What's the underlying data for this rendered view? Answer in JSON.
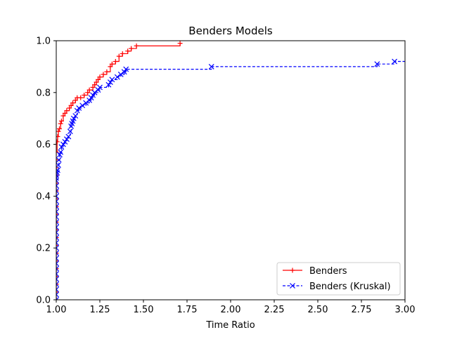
{
  "chart_data": {
    "type": "line",
    "title": "Benders Models",
    "xlabel": "Time Ratio",
    "ylabel": "",
    "xlim": [
      1.0,
      3.0
    ],
    "ylim": [
      0.0,
      1.0
    ],
    "xticks": [
      "1.00",
      "1.25",
      "1.50",
      "1.75",
      "2.00",
      "2.25",
      "2.50",
      "2.75",
      "3.00"
    ],
    "yticks": [
      "0.0",
      "0.2",
      "0.4",
      "0.6",
      "0.8",
      "1.0"
    ],
    "grid": false,
    "legend_position": "lower-right",
    "series": [
      {
        "name": "Benders",
        "color": "#ff0000",
        "marker": "plus",
        "linestyle": "solid",
        "x": [
          1.0,
          1.0,
          1.0,
          1.0,
          1.0,
          1.0,
          1.0,
          1.0,
          1.0,
          1.0,
          1.0,
          1.0,
          1.0,
          1.0,
          1.0,
          1.0,
          1.0,
          1.0,
          1.0,
          1.0,
          1.005,
          1.008,
          1.012,
          1.018,
          1.025,
          1.03,
          1.04,
          1.05,
          1.06,
          1.075,
          1.085,
          1.095,
          1.11,
          1.12,
          1.14,
          1.16,
          1.18,
          1.19,
          1.21,
          1.22,
          1.23,
          1.24,
          1.25,
          1.27,
          1.29,
          1.31,
          1.32,
          1.34,
          1.36,
          1.38,
          1.41,
          1.43,
          1.46,
          1.71
        ],
        "y": [
          0.0,
          0.03,
          0.06,
          0.09,
          0.12,
          0.15,
          0.18,
          0.21,
          0.24,
          0.27,
          0.3,
          0.33,
          0.36,
          0.39,
          0.42,
          0.45,
          0.48,
          0.51,
          0.54,
          0.57,
          0.61,
          0.63,
          0.65,
          0.66,
          0.68,
          0.69,
          0.71,
          0.72,
          0.73,
          0.74,
          0.75,
          0.76,
          0.77,
          0.78,
          0.78,
          0.79,
          0.8,
          0.81,
          0.82,
          0.83,
          0.84,
          0.85,
          0.86,
          0.87,
          0.88,
          0.9,
          0.91,
          0.92,
          0.94,
          0.95,
          0.96,
          0.97,
          0.98,
          0.99
        ],
        "final_x": 1.72
      },
      {
        "name": "Benders (Kruskal)",
        "color": "#0000ff",
        "marker": "x",
        "linestyle": "dashed",
        "x": [
          1.0,
          1.0,
          1.0,
          1.0,
          1.0,
          1.0,
          1.0,
          1.0,
          1.0,
          1.0,
          1.0,
          1.0,
          1.0,
          1.0,
          1.0,
          1.0,
          1.0,
          1.0,
          1.0,
          1.0,
          1.0,
          1.0,
          1.0,
          1.0,
          1.0,
          1.0,
          1.005,
          1.008,
          1.012,
          1.015,
          1.02,
          1.025,
          1.03,
          1.04,
          1.05,
          1.06,
          1.07,
          1.08,
          1.085,
          1.09,
          1.095,
          1.1,
          1.11,
          1.12,
          1.13,
          1.15,
          1.17,
          1.19,
          1.2,
          1.21,
          1.22,
          1.24,
          1.25,
          1.3,
          1.31,
          1.32,
          1.35,
          1.37,
          1.39,
          1.4,
          1.89,
          2.84,
          2.94
        ],
        "y": [
          0.0,
          0.02,
          0.04,
          0.06,
          0.08,
          0.1,
          0.12,
          0.14,
          0.16,
          0.18,
          0.2,
          0.22,
          0.24,
          0.26,
          0.28,
          0.3,
          0.32,
          0.34,
          0.36,
          0.38,
          0.4,
          0.42,
          0.44,
          0.46,
          0.47,
          0.48,
          0.49,
          0.5,
          0.52,
          0.54,
          0.56,
          0.57,
          0.59,
          0.6,
          0.61,
          0.62,
          0.63,
          0.65,
          0.67,
          0.68,
          0.69,
          0.7,
          0.71,
          0.73,
          0.74,
          0.75,
          0.76,
          0.77,
          0.78,
          0.79,
          0.8,
          0.81,
          0.82,
          0.83,
          0.84,
          0.85,
          0.86,
          0.87,
          0.88,
          0.89,
          0.9,
          0.91,
          0.92
        ],
        "final_x": 3.0
      }
    ]
  }
}
